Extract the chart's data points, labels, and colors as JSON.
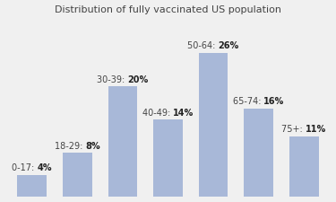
{
  "title": "Distribution of fully vaccinated US population",
  "categories": [
    "0-17",
    "18-29",
    "30-39",
    "40-49",
    "50-64",
    "65-74",
    "75+"
  ],
  "values": [
    4,
    8,
    20,
    14,
    26,
    16,
    11
  ],
  "bar_color": "#a8b8d8",
  "labels_normal": [
    "0-17: ",
    "18-29: ",
    "30-39: ",
    "40-49: ",
    "50-64: ",
    "65-74: ",
    "75+: "
  ],
  "labels_bold": [
    "4%",
    "8%",
    "20%",
    "14%",
    "26%",
    "16%",
    "11%"
  ],
  "background_color": "#f0f0f0",
  "title_fontsize": 8.0,
  "label_fontsize": 7.0,
  "ylim": [
    0,
    32
  ]
}
